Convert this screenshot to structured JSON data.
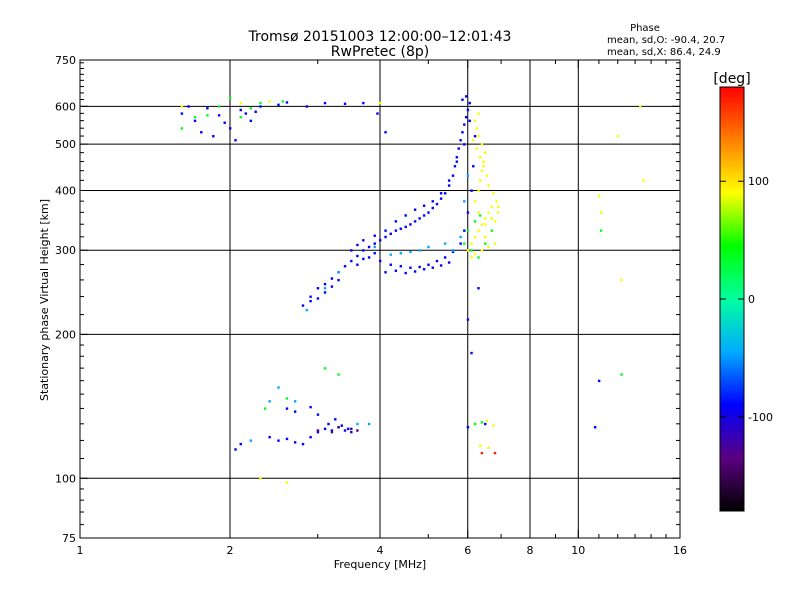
{
  "chart_data": {
    "type": "scatter",
    "title": "Tromsø 20151003 12:00:00–12:01:43",
    "subtitle": "RwPretec (8p)",
    "xlabel": "Frequency [MHz]",
    "ylabel": "Stationary phase Virtual Height [km]",
    "xscale": "log",
    "yscale": "log",
    "xlim": [
      1,
      16
    ],
    "ylim": [
      75,
      750
    ],
    "xticks": [
      1,
      2,
      4,
      6,
      8,
      10,
      16
    ],
    "yticks": [
      75,
      100,
      200,
      300,
      400,
      500,
      600,
      750
    ],
    "xgrid": [
      2,
      4,
      6,
      8,
      10
    ],
    "ygrid": [
      100,
      200,
      300,
      400,
      500,
      600
    ],
    "grid": true,
    "stats": {
      "heading": "Phase",
      "line_o": "mean, sd,O: -90.4, 20.7",
      "line_x": "mean, sd,X:  86.4, 24.9"
    },
    "colorbar": {
      "label": "[deg]",
      "range": [
        -180,
        180
      ],
      "ticks": [
        100,
        0,
        -100
      ],
      "colormap": [
        "#000000",
        "#5a0080",
        "#0000ff",
        "#00aaff",
        "#00ffa0",
        "#00ff00",
        "#ffff00",
        "#ff8000",
        "#ff0000"
      ]
    },
    "series": [
      {
        "phase": -90,
        "points": [
          [
            1.6,
            580
          ],
          [
            1.7,
            560
          ],
          [
            1.8,
            595
          ],
          [
            1.9,
            575
          ],
          [
            2.0,
            540
          ],
          [
            2.1,
            590
          ],
          [
            2.2,
            560
          ],
          [
            2.3,
            600
          ],
          [
            1.75,
            530
          ],
          [
            2.05,
            510
          ],
          [
            2.15,
            580
          ],
          [
            1.65,
            600
          ],
          [
            1.95,
            555
          ],
          [
            2.25,
            585
          ],
          [
            1.85,
            520
          ],
          [
            2.8,
            118
          ],
          [
            2.9,
            122
          ],
          [
            3.0,
            125
          ],
          [
            3.1,
            127
          ],
          [
            3.2,
            126
          ],
          [
            3.3,
            128
          ],
          [
            3.4,
            126
          ],
          [
            3.5,
            125
          ],
          [
            2.4,
            122
          ],
          [
            2.5,
            120
          ],
          [
            2.6,
            121
          ],
          [
            2.7,
            119
          ],
          [
            3.15,
            130
          ],
          [
            3.25,
            133
          ],
          [
            3.35,
            129
          ],
          [
            3.45,
            127
          ],
          [
            2.6,
            140
          ],
          [
            2.7,
            138
          ],
          [
            2.9,
            141
          ],
          [
            3.0,
            136
          ],
          [
            2.05,
            115
          ],
          [
            2.1,
            118
          ],
          [
            2.8,
            230
          ],
          [
            2.9,
            240
          ],
          [
            3.0,
            250
          ],
          [
            3.1,
            255
          ],
          [
            3.2,
            262
          ],
          [
            3.3,
            270
          ],
          [
            3.4,
            278
          ],
          [
            3.5,
            285
          ],
          [
            3.6,
            292
          ],
          [
            3.7,
            300
          ],
          [
            3.8,
            305
          ],
          [
            3.9,
            310
          ],
          [
            4.0,
            315
          ],
          [
            4.1,
            320
          ],
          [
            4.2,
            325
          ],
          [
            4.3,
            330
          ],
          [
            4.4,
            333
          ],
          [
            4.5,
            336
          ],
          [
            4.6,
            340
          ],
          [
            4.7,
            345
          ],
          [
            4.8,
            350
          ],
          [
            4.9,
            355
          ],
          [
            5.0,
            360
          ],
          [
            5.1,
            368
          ],
          [
            5.2,
            375
          ],
          [
            5.3,
            385
          ],
          [
            5.4,
            395
          ],
          [
            5.5,
            410
          ],
          [
            5.6,
            430
          ],
          [
            5.65,
            450
          ],
          [
            5.7,
            470
          ],
          [
            5.75,
            490
          ],
          [
            5.8,
            510
          ],
          [
            5.85,
            530
          ],
          [
            5.9,
            550
          ],
          [
            5.95,
            570
          ],
          [
            6.0,
            590
          ],
          [
            6.05,
            610
          ],
          [
            5.95,
            630
          ],
          [
            5.85,
            620
          ],
          [
            3.8,
            290
          ],
          [
            4.0,
            285
          ],
          [
            4.2,
            280
          ],
          [
            4.4,
            278
          ],
          [
            4.6,
            276
          ],
          [
            4.8,
            277
          ],
          [
            5.0,
            280
          ],
          [
            5.2,
            285
          ],
          [
            5.4,
            290
          ],
          [
            5.6,
            298
          ],
          [
            5.8,
            310
          ],
          [
            5.9,
            330
          ],
          [
            6.0,
            360
          ],
          [
            6.1,
            400
          ],
          [
            6.15,
            450
          ],
          [
            6.2,
            520
          ],
          [
            3.5,
            300
          ],
          [
            3.6,
            308
          ],
          [
            3.7,
            315
          ],
          [
            3.9,
            322
          ],
          [
            4.1,
            330
          ],
          [
            4.3,
            345
          ],
          [
            4.5,
            355
          ],
          [
            4.7,
            365
          ],
          [
            4.9,
            372
          ],
          [
            5.1,
            380
          ],
          [
            5.3,
            395
          ],
          [
            5.5,
            420
          ],
          [
            5.7,
            460
          ],
          [
            5.9,
            500
          ],
          [
            6.05,
            560
          ],
          [
            4.1,
            270
          ],
          [
            4.3,
            272
          ],
          [
            4.5,
            269
          ],
          [
            4.7,
            271
          ],
          [
            4.9,
            274
          ],
          [
            5.1,
            276
          ],
          [
            5.3,
            279
          ],
          [
            5.5,
            283
          ],
          [
            3.0,
            238
          ],
          [
            3.1,
            245
          ],
          [
            3.2,
            252
          ],
          [
            2.9,
            235
          ],
          [
            3.3,
            260
          ],
          [
            3.6,
            280
          ],
          [
            3.7,
            288
          ],
          [
            3.9,
            296
          ],
          [
            6.3,
            250
          ],
          [
            6.0,
            215
          ],
          [
            6.0,
            128
          ],
          [
            6.1,
            183
          ],
          [
            10.8,
            128
          ],
          [
            11.0,
            160
          ],
          [
            6.5,
            130
          ],
          [
            2.85,
            600
          ],
          [
            3.1,
            610
          ],
          [
            3.4,
            608
          ],
          [
            3.7,
            610
          ],
          [
            3.95,
            580
          ],
          [
            4.1,
            530
          ],
          [
            2.5,
            605
          ],
          [
            2.6,
            612
          ]
        ]
      },
      {
        "phase": 88,
        "points": [
          [
            6.0,
            300
          ],
          [
            6.1,
            310
          ],
          [
            6.2,
            320
          ],
          [
            6.3,
            330
          ],
          [
            6.4,
            340
          ],
          [
            6.5,
            350
          ],
          [
            6.6,
            360
          ],
          [
            6.7,
            370
          ],
          [
            6.2,
            380
          ],
          [
            6.3,
            400
          ],
          [
            6.35,
            420
          ],
          [
            6.4,
            440
          ],
          [
            6.45,
            460
          ],
          [
            6.5,
            480
          ],
          [
            6.4,
            500
          ],
          [
            6.3,
            520
          ],
          [
            6.25,
            540
          ],
          [
            6.2,
            560
          ],
          [
            6.3,
            580
          ],
          [
            6.1,
            290
          ],
          [
            6.2,
            295
          ],
          [
            6.4,
            300
          ],
          [
            6.6,
            305
          ],
          [
            6.8,
            310
          ],
          [
            6.5,
            320
          ],
          [
            6.7,
            330
          ],
          [
            6.8,
            345
          ],
          [
            6.9,
            360
          ],
          [
            6.85,
            380
          ],
          [
            6.75,
            395
          ],
          [
            6.6,
            410
          ],
          [
            6.55,
            430
          ],
          [
            6.45,
            450
          ],
          [
            6.35,
            470
          ],
          [
            6.25,
            490
          ],
          [
            6.15,
            510
          ],
          [
            6.3,
            360
          ],
          [
            6.5,
            340
          ],
          [
            6.7,
            350
          ],
          [
            6.9,
            370
          ],
          [
            6.2,
            130
          ],
          [
            6.4,
            131
          ],
          [
            6.55,
            132
          ],
          [
            6.75,
            129
          ],
          [
            6.6,
            116
          ],
          [
            6.35,
            117
          ],
          [
            11.0,
            390
          ],
          [
            11.1,
            360
          ],
          [
            12.0,
            520
          ],
          [
            12.2,
            260
          ],
          [
            13.5,
            420
          ],
          [
            13.3,
            600
          ],
          [
            2.3,
            100
          ],
          [
            2.6,
            98
          ],
          [
            1.6,
            600
          ],
          [
            2.1,
            610
          ],
          [
            2.4,
            615
          ],
          [
            4.0,
            610
          ]
        ]
      },
      {
        "phase": 35,
        "points": [
          [
            1.7,
            570
          ],
          [
            1.9,
            600
          ],
          [
            2.1,
            570
          ],
          [
            2.3,
            610
          ],
          [
            1.6,
            540
          ],
          [
            2.0,
            625
          ],
          [
            2.2,
            595
          ],
          [
            1.8,
            575
          ],
          [
            2.55,
            615
          ],
          [
            2.35,
            140
          ],
          [
            2.6,
            147
          ],
          [
            3.1,
            170
          ],
          [
            3.3,
            165
          ],
          [
            6.2,
            130
          ],
          [
            6.4,
            131
          ],
          [
            11.1,
            330
          ],
          [
            6.0,
            330
          ],
          [
            6.2,
            345
          ],
          [
            6.35,
            355
          ],
          [
            6.1,
            300
          ],
          [
            6.3,
            290
          ],
          [
            6.5,
            310
          ],
          [
            6.7,
            330
          ],
          [
            5.9,
            310
          ],
          [
            12.2,
            165
          ]
        ]
      },
      {
        "phase": -45,
        "points": [
          [
            2.5,
            155
          ],
          [
            2.4,
            145
          ],
          [
            2.7,
            145
          ],
          [
            3.6,
            130
          ],
          [
            3.8,
            130
          ],
          [
            2.2,
            120
          ],
          [
            5.6,
            300
          ],
          [
            5.8,
            320
          ],
          [
            5.4,
            310
          ],
          [
            5.0,
            305
          ],
          [
            4.8,
            300
          ],
          [
            4.6,
            298
          ],
          [
            4.4,
            296
          ],
          [
            4.2,
            294
          ],
          [
            3.9,
            305
          ],
          [
            3.1,
            250
          ],
          [
            3.3,
            270
          ],
          [
            2.85,
            225
          ],
          [
            5.9,
            380
          ],
          [
            6.0,
            430
          ]
        ]
      },
      {
        "phase": -130,
        "points": [
          [
            3.3,
            128
          ],
          [
            3.5,
            127
          ],
          [
            3.6,
            126
          ],
          [
            3.2,
            125
          ],
          [
            3.0,
            126
          ]
        ]
      },
      {
        "phase": 170,
        "points": [
          [
            6.4,
            113
          ],
          [
            6.8,
            113
          ]
        ]
      }
    ]
  }
}
